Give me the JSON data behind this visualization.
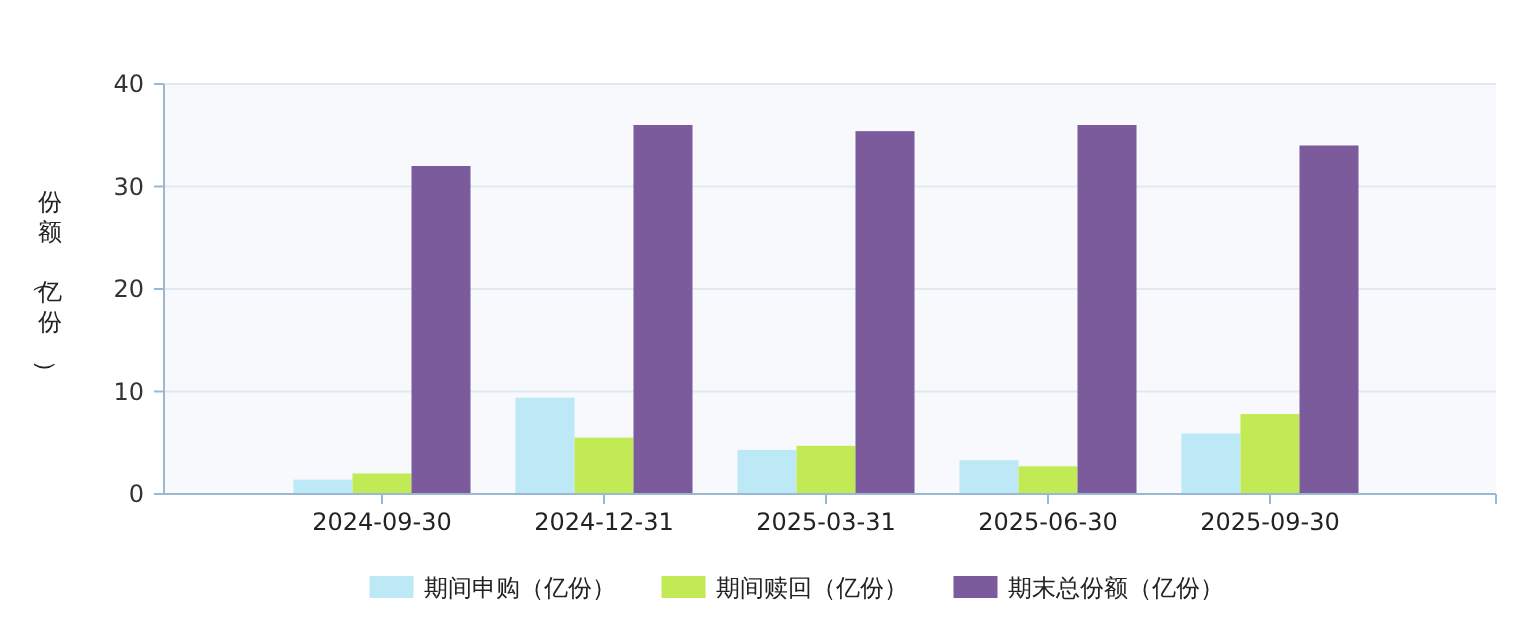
{
  "chart_data": {
    "type": "bar",
    "ylabel": "份额（亿份）",
    "categories": [
      "2024-09-30",
      "2024-12-31",
      "2025-03-31",
      "2025-06-30",
      "2025-09-30"
    ],
    "series": [
      {
        "name": "期间申购（亿份）",
        "color": "#bde8f5",
        "values": [
          1.4,
          9.4,
          4.3,
          3.3,
          5.9
        ]
      },
      {
        "name": "期间赎回（亿份）",
        "color": "#c2ea55",
        "values": [
          2.0,
          5.5,
          4.7,
          2.7,
          7.8
        ]
      },
      {
        "name": "期末总份额（亿份）",
        "color": "#7b5b9b",
        "values": [
          32.0,
          36.0,
          35.4,
          36.0,
          34.0
        ]
      }
    ],
    "ylim": [
      0,
      40
    ],
    "yticks": [
      0,
      10,
      20,
      30,
      40
    ],
    "grid": "y",
    "legend": "bottom"
  }
}
